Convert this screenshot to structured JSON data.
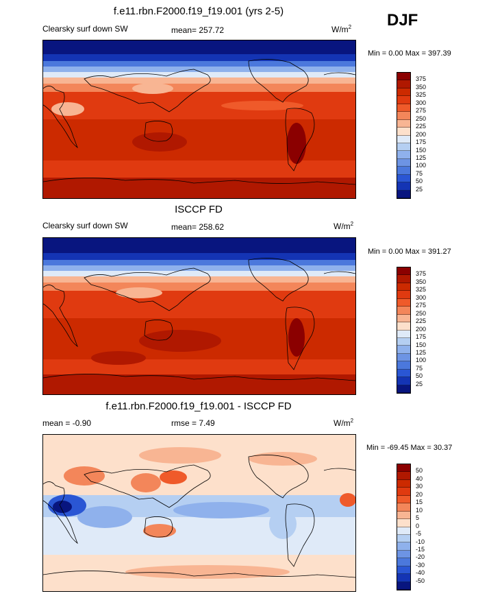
{
  "header": {
    "season": "DJF"
  },
  "panels": [
    {
      "title": "f.e11.rbn.F2000.f19_f19.001 (yrs 2-5)",
      "left_label": "Clearsky surf down SW",
      "mean_text": "mean= 257.72",
      "units": "W/m",
      "units_sup": "2",
      "minmax": "Min =   0.00 Max = 397.39",
      "levels": [
        "375",
        "350",
        "325",
        "300",
        "275",
        "250",
        "225",
        "200",
        "175",
        "150",
        "125",
        "100",
        "75",
        "50",
        "25"
      ],
      "colors": [
        "#8b0000",
        "#b01800",
        "#cc2a00",
        "#e03a10",
        "#ef5a2a",
        "#f3865a",
        "#f8b593",
        "#fde0cb",
        "#dfeaf8",
        "#b5cff2",
        "#8fb1ec",
        "#6d94e4",
        "#4b78dc",
        "#2a56d4",
        "#1434b4",
        "#08157f"
      ]
    },
    {
      "title": "ISCCP FD",
      "left_label": "Clearsky surf down SW",
      "mean_text": "mean= 258.62",
      "units": "W/m",
      "units_sup": "2",
      "minmax": "Min =   0.00 Max = 391.27",
      "levels": [
        "375",
        "350",
        "325",
        "300",
        "275",
        "250",
        "225",
        "200",
        "175",
        "150",
        "125",
        "100",
        "75",
        "50",
        "25"
      ],
      "colors": [
        "#8b0000",
        "#b01800",
        "#cc2a00",
        "#e03a10",
        "#ef5a2a",
        "#f3865a",
        "#f8b593",
        "#fde0cb",
        "#dfeaf8",
        "#b5cff2",
        "#8fb1ec",
        "#6d94e4",
        "#4b78dc",
        "#2a56d4",
        "#1434b4",
        "#08157f"
      ]
    },
    {
      "title": "f.e11.rbn.F2000.f19_f19.001 - ISCCP FD",
      "left_label": "mean =  -0.90",
      "mean_text": "rmse =   7.49",
      "units": "W/m",
      "units_sup": "2",
      "minmax": "Min = -69.45  Max =  30.37",
      "levels": [
        "50",
        "40",
        "30",
        "20",
        "15",
        "10",
        "5",
        "0",
        "-5",
        "-10",
        "-15",
        "-20",
        "-30",
        "-40",
        "-50"
      ],
      "colors": [
        "#8b0000",
        "#b01800",
        "#cc2a00",
        "#e03a10",
        "#ef5a2a",
        "#f3865a",
        "#f8b593",
        "#fde0cb",
        "#dfeaf8",
        "#b5cff2",
        "#8fb1ec",
        "#6d94e4",
        "#4b78dc",
        "#2a56d4",
        "#1434b4",
        "#08157f"
      ]
    }
  ]
}
